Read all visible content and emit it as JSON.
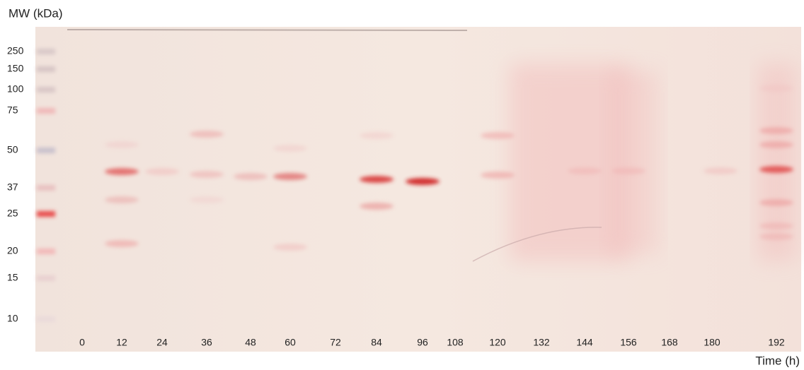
{
  "mw_title": "MW (kDa)",
  "markers": [
    "250",
    "150",
    "100",
    "75",
    "50",
    "37",
    "25",
    "20",
    "15",
    "10"
  ],
  "lanes": [
    "0",
    "12",
    "24",
    "36",
    "48",
    "60",
    "72",
    "84",
    "96",
    "108",
    "120",
    "132",
    "144",
    "156",
    "168",
    "180",
    "192"
  ],
  "x_title": "Time (h)"
}
